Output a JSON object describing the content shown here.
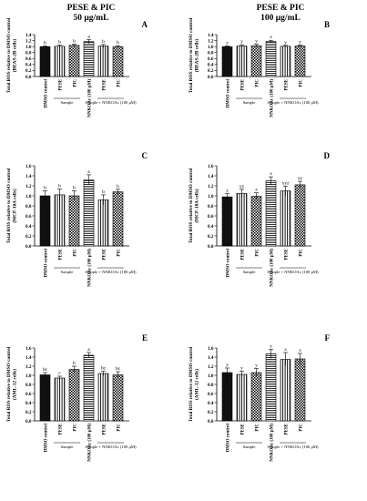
{
  "headers": {
    "left": [
      "PESE & PIC",
      "50 μg/mL"
    ],
    "right": [
      "PESE & PIC",
      "100 μg/mL"
    ]
  },
  "colors": {
    "bar_stroke": "#000000",
    "dark_bar": "#111111"
  },
  "chart_data": [
    {
      "type": "bar",
      "panel": "A",
      "ylabel": [
        "Total ROS relative to DMSO control",
        "(BEAS-2B cells)"
      ],
      "ylim": [
        0,
        1.4
      ],
      "yticks": [
        0.0,
        0.2,
        0.4,
        0.6,
        0.8,
        1.0,
        1.2,
        1.4
      ],
      "categories": [
        "DMSO control",
        "PESE",
        "PIC",
        "NNKOAc (100 μM)",
        "PESE",
        "PIC"
      ],
      "values": [
        1.0,
        1.01,
        1.04,
        1.17,
        1.02,
        1.0
      ],
      "errors": [
        0.02,
        0.04,
        0.04,
        0.07,
        0.05,
        0.03
      ],
      "letters": [
        "b",
        "b",
        "b",
        "a",
        "b",
        "b"
      ],
      "groups": [
        {
          "label": "Sample",
          "from": 1,
          "to": 2
        },
        {
          "label": "Sample + NNKOAc (100  μM)",
          "from": 4,
          "to": 5
        }
      ]
    },
    {
      "type": "bar",
      "panel": "B",
      "ylabel": [
        "Total ROS relative to DMSO control",
        "(BEAS-2B cells)"
      ],
      "ylim": [
        0,
        1.4
      ],
      "yticks": [
        0.0,
        0.2,
        0.4,
        0.6,
        0.8,
        1.0,
        1.2,
        1.4
      ],
      "categories": [
        "DMSO control",
        "PESE",
        "PIC",
        "NNKOAc (100 μM)",
        "PESE",
        "PIC"
      ],
      "values": [
        1.0,
        1.02,
        1.03,
        1.17,
        1.01,
        1.02
      ],
      "errors": [
        0.02,
        0.04,
        0.05,
        0.04,
        0.03,
        0.03
      ],
      "letters": [
        "y",
        "y",
        "y",
        "x",
        "y",
        "y"
      ],
      "groups": [
        {
          "label": "Sample",
          "from": 1,
          "to": 2
        },
        {
          "label": "Sample + NNKOAc (100  μM)",
          "from": 4,
          "to": 5
        }
      ]
    },
    {
      "type": "bar",
      "panel": "C",
      "ylabel": [
        "Total ROS relative to DMSO control",
        "(MCF-10A cells)"
      ],
      "ylim": [
        0,
        1.6
      ],
      "yticks": [
        0.0,
        0.2,
        0.4,
        0.6,
        0.8,
        1.0,
        1.2,
        1.4,
        1.6
      ],
      "categories": [
        "DMSO control",
        "PESE",
        "PIC",
        "NNKOAc (100 μM)",
        "PESE",
        "PIC"
      ],
      "values": [
        1.0,
        1.02,
        1.0,
        1.32,
        0.92,
        1.08
      ],
      "errors": [
        0.1,
        0.12,
        0.1,
        0.1,
        0.1,
        0.05
      ],
      "letters": [
        "b",
        "b",
        "b",
        "a",
        "b",
        "b"
      ],
      "groups": [
        {
          "label": "Sample",
          "from": 1,
          "to": 2
        },
        {
          "label": "Sample + NNKOAc (100  μM)",
          "from": 4,
          "to": 5
        }
      ]
    },
    {
      "type": "bar",
      "panel": "D",
      "ylabel": [
        "Total ROS relative to DMSO control",
        "(MCF-10A cells)"
      ],
      "ylim": [
        0,
        1.6
      ],
      "yticks": [
        0.0,
        0.2,
        0.4,
        0.6,
        0.8,
        1.0,
        1.2,
        1.4,
        1.6
      ],
      "categories": [
        "DMSO control",
        "PESE",
        "PIC",
        "NNKOAc (100 μM)",
        "PESE",
        "PIC"
      ],
      "values": [
        0.98,
        1.05,
        0.99,
        1.3,
        1.1,
        1.22
      ],
      "errors": [
        0.07,
        0.08,
        0.07,
        0.08,
        0.09,
        0.07
      ],
      "letters": [
        "z",
        "yz",
        "z",
        "x",
        "xyz",
        "xy"
      ],
      "groups": [
        {
          "label": "Sample",
          "from": 1,
          "to": 2
        },
        {
          "label": "Sample + NNKOAc (100  μM)",
          "from": 4,
          "to": 5
        }
      ]
    },
    {
      "type": "bar",
      "panel": "E",
      "ylabel": [
        "Total ROS relative to DMSO control",
        "(AML-12 cells)"
      ],
      "ylim": [
        0,
        1.6
      ],
      "yticks": [
        0.0,
        0.2,
        0.4,
        0.6,
        0.8,
        1.0,
        1.2,
        1.4,
        1.6
      ],
      "categories": [
        "DMSO control",
        "PESE",
        "PIC",
        "NNKOAc (100 μM)",
        "PESE",
        "PIC"
      ],
      "values": [
        1.01,
        0.94,
        1.13,
        1.44,
        1.04,
        1.01
      ],
      "errors": [
        0.05,
        0.04,
        0.07,
        0.06,
        0.05,
        0.07
      ],
      "letters": [
        "bc",
        "c",
        "b",
        "a",
        "bc",
        "bc"
      ],
      "groups": [
        {
          "label": "Sample",
          "from": 1,
          "to": 2
        },
        {
          "label": "Sample + NNKOAc (100  μM)",
          "from": 4,
          "to": 5
        }
      ]
    },
    {
      "type": "bar",
      "panel": "F",
      "ylabel": [
        "Total ROS relative to DMSO control",
        "(AML-12 cells)"
      ],
      "ylim": [
        0,
        1.6
      ],
      "yticks": [
        0.0,
        0.2,
        0.4,
        0.6,
        0.8,
        1.0,
        1.2,
        1.4,
        1.6
      ],
      "categories": [
        "DMSO control",
        "PESE",
        "PIC",
        "NNKOAc (100 μM)",
        "PESE",
        "PIC"
      ],
      "values": [
        1.06,
        1.02,
        1.06,
        1.47,
        1.35,
        1.36
      ],
      "errors": [
        0.1,
        0.07,
        0.09,
        0.1,
        0.15,
        0.12
      ],
      "letters": [
        "y",
        "y",
        "y",
        "x",
        "x",
        "x"
      ],
      "groups": [
        {
          "label": "Sample",
          "from": 1,
          "to": 2
        },
        {
          "label": "Sample + NNKOAc (100  μM)",
          "from": 4,
          "to": 5
        }
      ]
    }
  ]
}
